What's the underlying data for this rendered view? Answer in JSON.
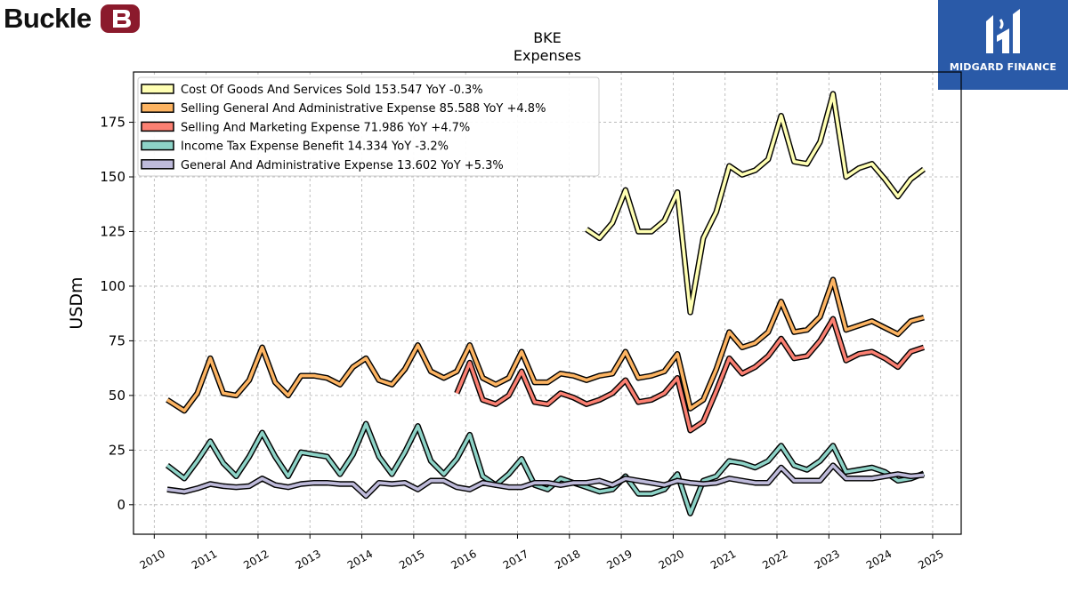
{
  "header": {
    "left_logo_text": "Buckle",
    "right_logo_text": "MIDGARD FINANCE"
  },
  "colors": {
    "cogs": "#ffffb3",
    "sga": "#fdb462",
    "sm": "#fb8072",
    "tax": "#8dd3c7",
    "ga": "#bebada",
    "buckle_badge": "#8b1a2c",
    "midgard_bg": "#2a5aa8"
  },
  "chart_data": {
    "type": "line",
    "title": "BKE",
    "subtitle": "Expenses",
    "xlabel": "",
    "ylabel": "USDm",
    "xlim": [
      2009.6,
      2025.55
    ],
    "ylim": [
      -13.5,
      198
    ],
    "x_ticks": [
      "2010",
      "2011",
      "2012",
      "2013",
      "2014",
      "2015",
      "2016",
      "2017",
      "2018",
      "2019",
      "2020",
      "2021",
      "2022",
      "2023",
      "2024",
      "2025"
    ],
    "y_ticks": [
      0,
      25,
      50,
      75,
      100,
      125,
      150,
      175
    ],
    "grid": true,
    "legend_position": "top-left",
    "series": [
      {
        "key": "cogs",
        "name": "Cost Of Goods And Services Sold",
        "legend": "Cost Of Goods And Services Sold  153.547 YoY -0.3%",
        "x": [
          2018.33,
          2018.58,
          2018.83,
          2019.08,
          2019.33,
          2019.58,
          2019.83,
          2020.08,
          2020.33,
          2020.58,
          2020.83,
          2021.08,
          2021.33,
          2021.58,
          2021.83,
          2022.08,
          2022.33,
          2022.58,
          2022.83,
          2023.08,
          2023.33,
          2023.58,
          2023.83,
          2024.08,
          2024.33,
          2024.58,
          2024.83
        ],
        "y": [
          126,
          122,
          129,
          144,
          125,
          125,
          130,
          143,
          88,
          122,
          134,
          155,
          151,
          153,
          158,
          178,
          157,
          156,
          166,
          188,
          150,
          154,
          156,
          149,
          141,
          149,
          153.5
        ]
      },
      {
        "key": "sga",
        "name": "Selling General And Administrative Expense",
        "legend": "Selling General And Administrative Expense  85.588 YoY +4.8%",
        "x": [
          2010.25,
          2010.58,
          2010.83,
          2011.08,
          2011.33,
          2011.58,
          2011.83,
          2012.08,
          2012.33,
          2012.58,
          2012.83,
          2013.08,
          2013.33,
          2013.58,
          2013.83,
          2014.08,
          2014.33,
          2014.58,
          2014.83,
          2015.08,
          2015.33,
          2015.58,
          2015.83,
          2016.08,
          2016.33,
          2016.58,
          2016.83,
          2017.08,
          2017.33,
          2017.58,
          2017.83,
          2018.08,
          2018.33,
          2018.58,
          2018.83,
          2019.08,
          2019.33,
          2019.58,
          2019.83,
          2020.08,
          2020.33,
          2020.58,
          2020.83,
          2021.08,
          2021.33,
          2021.58,
          2021.83,
          2022.08,
          2022.33,
          2022.58,
          2022.83,
          2023.08,
          2023.33,
          2023.58,
          2023.83,
          2024.08,
          2024.33,
          2024.58,
          2024.83
        ],
        "y": [
          48,
          43,
          51,
          67,
          51,
          50,
          57,
          72,
          56,
          50,
          59,
          59,
          58,
          55,
          63,
          67,
          57,
          55,
          62,
          73,
          61,
          58,
          61,
          73,
          58,
          55,
          58,
          70,
          56,
          56,
          60,
          59,
          57,
          59,
          60,
          70,
          58,
          59,
          61,
          69,
          44,
          48,
          62,
          79,
          72,
          74,
          79,
          93,
          79,
          80,
          86,
          103,
          80,
          82,
          84,
          81,
          78,
          84,
          85.6
        ]
      },
      {
        "key": "sm",
        "name": "Selling And Marketing Expense",
        "legend": "Selling And Marketing Expense  71.986 YoY +4.7%",
        "x": [
          2015.83,
          2016.08,
          2016.33,
          2016.58,
          2016.83,
          2017.08,
          2017.33,
          2017.58,
          2017.83,
          2018.08,
          2018.33,
          2018.58,
          2018.83,
          2019.08,
          2019.33,
          2019.58,
          2019.83,
          2020.08,
          2020.33,
          2020.58,
          2020.83,
          2021.08,
          2021.33,
          2021.58,
          2021.83,
          2022.08,
          2022.33,
          2022.58,
          2022.83,
          2023.08,
          2023.33,
          2023.58,
          2023.83,
          2024.08,
          2024.33,
          2024.58,
          2024.83
        ],
        "y": [
          51,
          65,
          48,
          46,
          50,
          61,
          47,
          46,
          51,
          49,
          46,
          48,
          51,
          57,
          47,
          48,
          51,
          58,
          34,
          38,
          52,
          67,
          60,
          63,
          68,
          76,
          67,
          68,
          75,
          85,
          66,
          69,
          70,
          67,
          63,
          70,
          72
        ]
      },
      {
        "key": "tax",
        "name": "Income Tax Expense Benefit",
        "legend": "Income Tax Expense Benefit  14.334 YoY -3.2%",
        "x": [
          2010.25,
          2010.58,
          2010.83,
          2011.08,
          2011.33,
          2011.58,
          2011.83,
          2012.08,
          2012.33,
          2012.58,
          2012.83,
          2013.08,
          2013.33,
          2013.58,
          2013.83,
          2014.08,
          2014.33,
          2014.58,
          2014.83,
          2015.08,
          2015.33,
          2015.58,
          2015.83,
          2016.08,
          2016.33,
          2016.58,
          2016.83,
          2017.08,
          2017.33,
          2017.58,
          2017.83,
          2018.08,
          2018.33,
          2018.58,
          2018.83,
          2019.08,
          2019.33,
          2019.58,
          2019.83,
          2020.08,
          2020.33,
          2020.58,
          2020.83,
          2021.08,
          2021.33,
          2021.58,
          2021.83,
          2022.08,
          2022.33,
          2022.58,
          2022.83,
          2023.08,
          2023.33,
          2023.58,
          2023.83,
          2024.08,
          2024.33,
          2024.58,
          2024.83
        ],
        "y": [
          18,
          12,
          20,
          29,
          19,
          13,
          22,
          33,
          22,
          13,
          24,
          23,
          22,
          14,
          23,
          37,
          22,
          14,
          24,
          36,
          20,
          14,
          21,
          32,
          13,
          9,
          14,
          21,
          9,
          7,
          12,
          10,
          8,
          6,
          7,
          13,
          5,
          5,
          7,
          14,
          -4,
          11,
          13,
          20,
          19,
          17,
          20,
          27,
          18,
          16,
          20,
          27,
          15,
          16,
          17,
          15,
          11,
          12,
          14.3
        ]
      },
      {
        "key": "ga",
        "name": "General And Administrative Expense",
        "legend": "General And Administrative Expense  13.602 YoY +5.3%",
        "x": [
          2010.25,
          2010.58,
          2010.83,
          2011.08,
          2011.33,
          2011.58,
          2011.83,
          2012.08,
          2012.33,
          2012.58,
          2012.83,
          2013.08,
          2013.33,
          2013.58,
          2013.83,
          2014.08,
          2014.33,
          2014.58,
          2014.83,
          2015.08,
          2015.33,
          2015.58,
          2015.83,
          2016.08,
          2016.33,
          2016.58,
          2016.83,
          2017.08,
          2017.33,
          2017.58,
          2017.83,
          2018.08,
          2018.33,
          2018.58,
          2018.83,
          2019.08,
          2019.33,
          2019.58,
          2019.83,
          2020.08,
          2020.33,
          2020.58,
          2020.83,
          2021.08,
          2021.33,
          2021.58,
          2021.83,
          2022.08,
          2022.33,
          2022.58,
          2022.83,
          2023.08,
          2023.33,
          2023.58,
          2023.83,
          2024.08,
          2024.33,
          2024.58,
          2024.83
        ],
        "y": [
          7,
          6,
          7.5,
          9.5,
          8.5,
          8,
          8.5,
          12,
          9,
          8,
          9.5,
          10,
          10,
          9.5,
          9.5,
          4,
          10,
          9.5,
          10,
          7,
          11,
          11,
          8,
          7,
          10,
          9,
          8,
          8,
          10,
          10,
          9,
          10,
          10,
          11,
          9,
          12,
          11,
          10,
          9,
          11,
          10,
          9.5,
          10,
          12,
          11,
          10,
          10,
          17,
          11,
          11,
          11,
          18,
          12,
          12,
          12,
          13,
          14,
          13,
          13.6
        ]
      }
    ]
  }
}
